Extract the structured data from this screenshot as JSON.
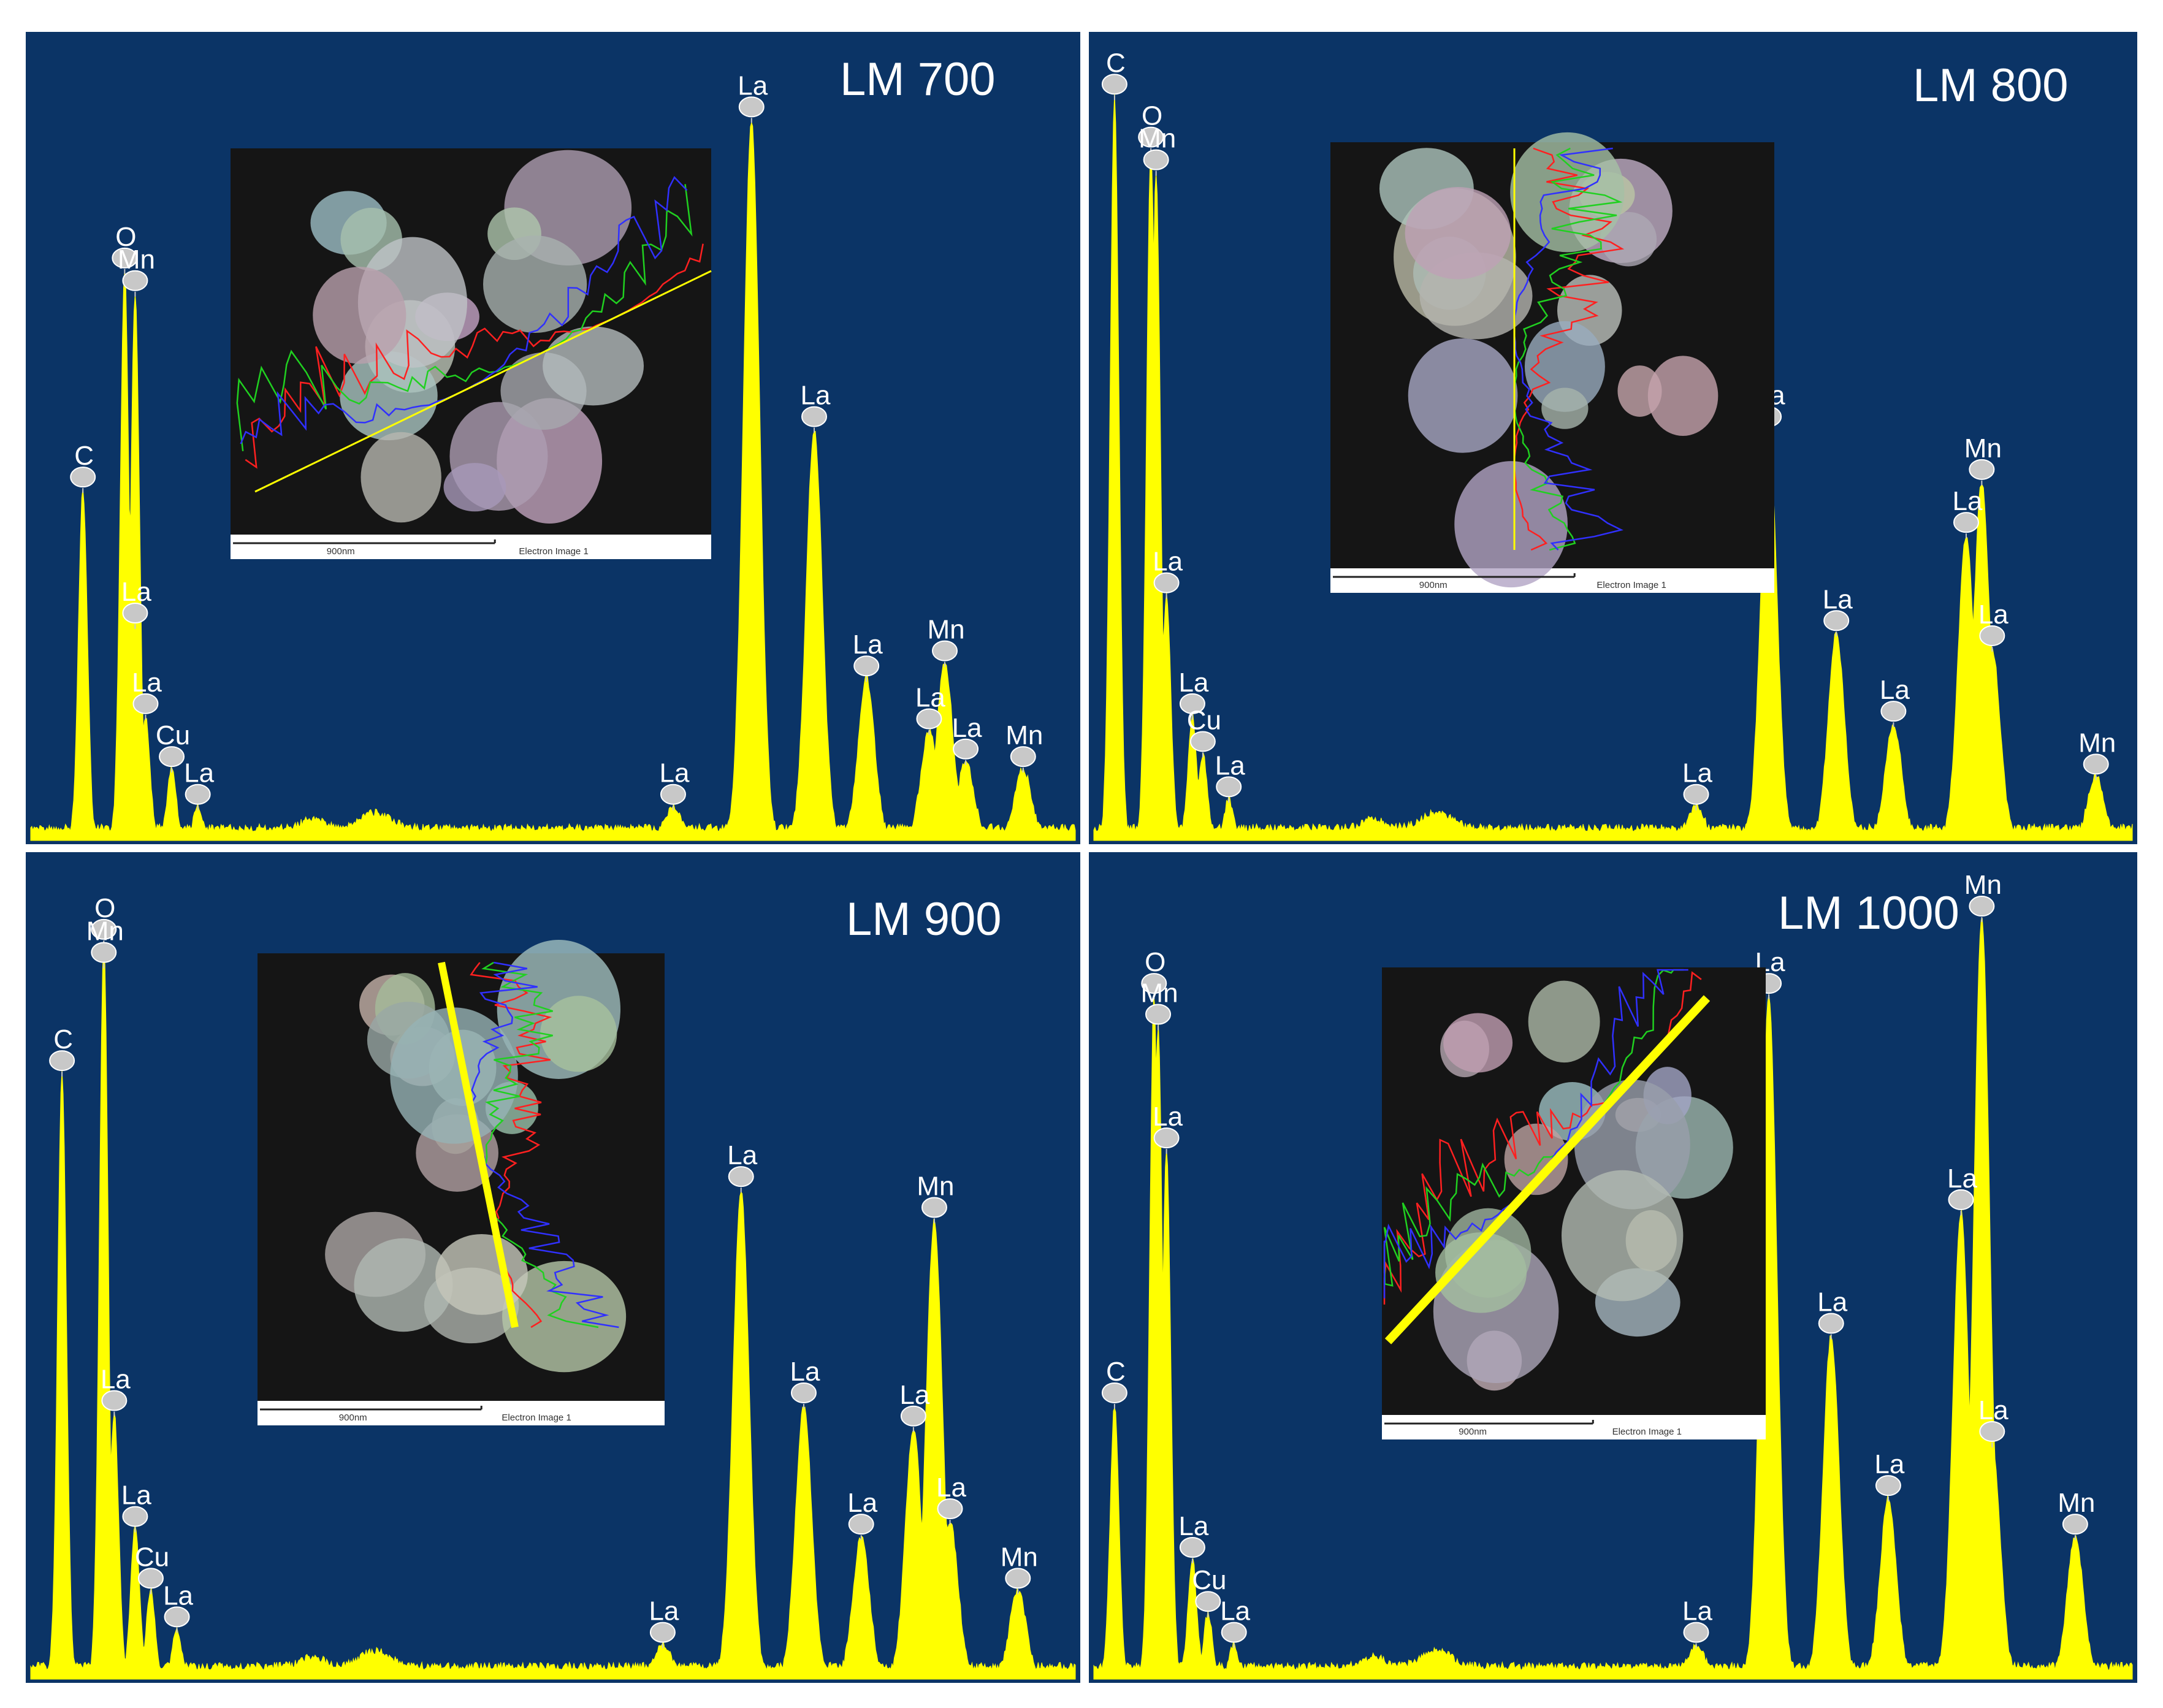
{
  "colors": {
    "panel_bg": "#0b3466",
    "spectrum": "#ffff00",
    "label_text": "#ffffff",
    "marker": "#c8c8c8",
    "inset_bg": "#151515",
    "line_red": "#ff2020",
    "line_green": "#20d020",
    "line_blue": "#3030ff",
    "scan_line": "#ffff00"
  },
  "chart_data": [
    {
      "type": "area",
      "title": "LM 700",
      "peaks": [
        {
          "label": "C",
          "x": 0.05,
          "height": 0.46
        },
        {
          "label": "O",
          "x": 0.09,
          "height": 0.75
        },
        {
          "label": "Mn",
          "x": 0.1,
          "height": 0.72
        },
        {
          "label": "La",
          "x": 0.1,
          "height": 0.28
        },
        {
          "label": "La",
          "x": 0.11,
          "height": 0.16
        },
        {
          "label": "Cu",
          "x": 0.135,
          "height": 0.09
        },
        {
          "label": "La",
          "x": 0.16,
          "height": 0.04
        },
        {
          "label": "La",
          "x": 0.615,
          "height": 0.04
        },
        {
          "label": "La",
          "x": 0.69,
          "height": 0.95
        },
        {
          "label": "La",
          "x": 0.75,
          "height": 0.54
        },
        {
          "label": "La",
          "x": 0.8,
          "height": 0.21
        },
        {
          "label": "La",
          "x": 0.86,
          "height": 0.14
        },
        {
          "label": "Mn",
          "x": 0.875,
          "height": 0.23
        },
        {
          "label": "La",
          "x": 0.895,
          "height": 0.1
        },
        {
          "label": "Mn",
          "x": 0.95,
          "height": 0.09
        }
      ],
      "inset": {
        "scale_label": "900nm",
        "caption": "Electron Image 1"
      }
    },
    {
      "type": "area",
      "title": "LM 800",
      "peaks": [
        {
          "label": "C",
          "x": 0.02,
          "height": 0.98
        },
        {
          "label": "O",
          "x": 0.055,
          "height": 0.91
        },
        {
          "label": "Mn",
          "x": 0.06,
          "height": 0.88
        },
        {
          "label": "La",
          "x": 0.07,
          "height": 0.32
        },
        {
          "label": "La",
          "x": 0.095,
          "height": 0.16
        },
        {
          "label": "Cu",
          "x": 0.105,
          "height": 0.11
        },
        {
          "label": "La",
          "x": 0.13,
          "height": 0.05
        },
        {
          "label": "La",
          "x": 0.58,
          "height": 0.04
        },
        {
          "label": "La",
          "x": 0.65,
          "height": 0.54
        },
        {
          "label": "La",
          "x": 0.715,
          "height": 0.27
        },
        {
          "label": "La",
          "x": 0.77,
          "height": 0.15
        },
        {
          "label": "La",
          "x": 0.84,
          "height": 0.4
        },
        {
          "label": "Mn",
          "x": 0.855,
          "height": 0.47
        },
        {
          "label": "La",
          "x": 0.865,
          "height": 0.25
        },
        {
          "label": "Mn",
          "x": 0.965,
          "height": 0.08
        }
      ],
      "inset": {
        "scale_label": "900nm",
        "caption": "Electron Image 1"
      }
    },
    {
      "type": "area",
      "title": "LM 900",
      "peaks": [
        {
          "label": "C",
          "x": 0.03,
          "height": 0.78
        },
        {
          "label": "O",
          "x": 0.07,
          "height": 0.95
        },
        {
          "label": "Mn",
          "x": 0.07,
          "height": 0.92
        },
        {
          "label": "La",
          "x": 0.08,
          "height": 0.34
        },
        {
          "label": "La",
          "x": 0.1,
          "height": 0.19
        },
        {
          "label": "Cu",
          "x": 0.115,
          "height": 0.11
        },
        {
          "label": "La",
          "x": 0.14,
          "height": 0.06
        },
        {
          "label": "La",
          "x": 0.605,
          "height": 0.04
        },
        {
          "label": "La",
          "x": 0.68,
          "height": 0.63
        },
        {
          "label": "La",
          "x": 0.74,
          "height": 0.35
        },
        {
          "label": "La",
          "x": 0.795,
          "height": 0.18
        },
        {
          "label": "La",
          "x": 0.845,
          "height": 0.32
        },
        {
          "label": "Mn",
          "x": 0.865,
          "height": 0.59
        },
        {
          "label": "La",
          "x": 0.88,
          "height": 0.2
        },
        {
          "label": "Mn",
          "x": 0.945,
          "height": 0.11
        }
      ],
      "inset": {
        "scale_label": "900nm",
        "caption": "Electron Image 1"
      }
    },
    {
      "type": "area",
      "title": "LM 1000",
      "peaks": [
        {
          "label": "C",
          "x": 0.02,
          "height": 0.35
        },
        {
          "label": "O",
          "x": 0.058,
          "height": 0.88
        },
        {
          "label": "Mn",
          "x": 0.062,
          "height": 0.84
        },
        {
          "label": "La",
          "x": 0.07,
          "height": 0.68
        },
        {
          "label": "La",
          "x": 0.095,
          "height": 0.15
        },
        {
          "label": "Cu",
          "x": 0.11,
          "height": 0.08
        },
        {
          "label": "La",
          "x": 0.135,
          "height": 0.04
        },
        {
          "label": "La",
          "x": 0.58,
          "height": 0.04
        },
        {
          "label": "La",
          "x": 0.65,
          "height": 0.88
        },
        {
          "label": "La",
          "x": 0.71,
          "height": 0.44
        },
        {
          "label": "La",
          "x": 0.765,
          "height": 0.23
        },
        {
          "label": "La",
          "x": 0.835,
          "height": 0.6
        },
        {
          "label": "Mn",
          "x": 0.855,
          "height": 0.98
        },
        {
          "label": "La",
          "x": 0.865,
          "height": 0.3
        },
        {
          "label": "Mn",
          "x": 0.945,
          "height": 0.18
        }
      ],
      "inset": {
        "scale_label": "900nm",
        "caption": "Electron Image 1"
      }
    }
  ]
}
